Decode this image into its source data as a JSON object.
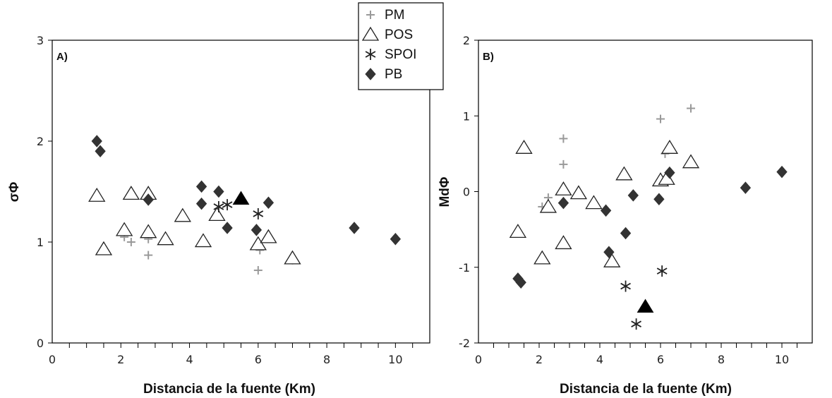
{
  "chart_data": [
    {
      "type": "scatter",
      "panel_label": "A)",
      "xlabel": "Distancia de la fuente (Km)",
      "ylabel": "σΦ",
      "xlim": [
        0,
        11
      ],
      "ylim": [
        0,
        3
      ],
      "xticks": [
        "0",
        "2",
        "4",
        "6",
        "8",
        "10"
      ],
      "yticks": [
        "0",
        "1",
        "2",
        "3"
      ],
      "x_minor_step": 0.5,
      "grid": false,
      "series": [
        {
          "name": "PM",
          "marker": "plus",
          "color": "#999999",
          "points": [
            [
              2.1,
              1.05
            ],
            [
              2.3,
              1.0
            ],
            [
              2.8,
              1.03
            ],
            [
              2.8,
              0.87
            ],
            [
              6.0,
              0.72
            ],
            [
              6.05,
              0.92
            ],
            [
              7.0,
              0.82
            ]
          ]
        },
        {
          "name": "POS",
          "marker": "triangle-open",
          "color": "#222222",
          "points": [
            [
              1.3,
              1.46
            ],
            [
              1.5,
              0.93
            ],
            [
              2.1,
              1.12
            ],
            [
              2.3,
              1.48
            ],
            [
              2.8,
              1.48
            ],
            [
              2.8,
              1.1
            ],
            [
              3.3,
              1.03
            ],
            [
              3.8,
              1.26
            ],
            [
              4.4,
              1.01
            ],
            [
              4.8,
              1.27
            ],
            [
              6.0,
              0.98
            ],
            [
              6.3,
              1.05
            ],
            [
              7.0,
              0.84
            ]
          ]
        },
        {
          "name": "SPOI",
          "marker": "asterisk",
          "color": "#222222",
          "points": [
            [
              4.85,
              1.35
            ],
            [
              5.1,
              1.37
            ],
            [
              6.0,
              1.28
            ]
          ]
        },
        {
          "name": "PB",
          "marker": "diamond",
          "color": "#333333",
          "points": [
            [
              1.3,
              2.0
            ],
            [
              1.4,
              1.9
            ],
            [
              2.8,
              1.42
            ],
            [
              4.35,
              1.55
            ],
            [
              4.35,
              1.38
            ],
            [
              4.85,
              1.5
            ],
            [
              5.1,
              1.14
            ],
            [
              5.95,
              1.12
            ],
            [
              6.3,
              1.39
            ],
            [
              8.8,
              1.14
            ],
            [
              10.0,
              1.03
            ]
          ]
        },
        {
          "marker": "triangle-filled",
          "color": "#000000",
          "points": [
            [
              5.5,
              1.43
            ]
          ]
        }
      ]
    },
    {
      "type": "scatter",
      "panel_label": "B)",
      "xlabel": "Distancia de la fuente (Km)",
      "ylabel": "MdΦ",
      "xlim": [
        0,
        11
      ],
      "ylim": [
        -2,
        2
      ],
      "xticks": [
        "0",
        "2",
        "4",
        "6",
        "8",
        "10"
      ],
      "yticks": [
        "-2",
        "-1",
        "0",
        "1",
        "2"
      ],
      "x_minor_step": 0.5,
      "grid": false,
      "series": [
        {
          "name": "PM",
          "marker": "plus",
          "color": "#999999",
          "points": [
            [
              2.1,
              -0.2
            ],
            [
              2.3,
              -0.08
            ],
            [
              2.8,
              0.7
            ],
            [
              2.8,
              0.36
            ],
            [
              6.0,
              0.96
            ],
            [
              6.15,
              0.5
            ],
            [
              7.0,
              1.1
            ]
          ]
        },
        {
          "name": "POS",
          "marker": "triangle-open",
          "color": "#222222",
          "points": [
            [
              1.3,
              -0.53
            ],
            [
              1.5,
              0.58
            ],
            [
              2.1,
              -0.88
            ],
            [
              2.3,
              -0.2
            ],
            [
              2.8,
              0.03
            ],
            [
              2.8,
              -0.68
            ],
            [
              3.3,
              -0.02
            ],
            [
              3.8,
              -0.15
            ],
            [
              4.4,
              -0.92
            ],
            [
              4.8,
              0.23
            ],
            [
              6.0,
              0.15
            ],
            [
              6.2,
              0.17
            ],
            [
              6.3,
              0.58
            ],
            [
              7.0,
              0.39
            ]
          ]
        },
        {
          "name": "SPOI",
          "marker": "asterisk",
          "color": "#222222",
          "points": [
            [
              4.85,
              -1.25
            ],
            [
              5.2,
              -1.75
            ],
            [
              6.05,
              -1.05
            ]
          ]
        },
        {
          "name": "PB",
          "marker": "diamond",
          "color": "#333333",
          "points": [
            [
              1.3,
              -1.15
            ],
            [
              1.4,
              -1.2
            ],
            [
              2.8,
              -0.15
            ],
            [
              4.2,
              -0.25
            ],
            [
              4.3,
              -0.8
            ],
            [
              4.85,
              -0.55
            ],
            [
              5.1,
              -0.05
            ],
            [
              5.95,
              -0.1
            ],
            [
              6.3,
              0.25
            ],
            [
              8.8,
              0.05
            ],
            [
              10.0,
              0.26
            ]
          ]
        },
        {
          "marker": "triangle-filled",
          "color": "#000000",
          "points": [
            [
              5.5,
              -1.52
            ]
          ]
        }
      ]
    }
  ],
  "legend": {
    "placement": "top-center",
    "items": [
      {
        "label": "PM",
        "marker": "plus",
        "color": "#999999"
      },
      {
        "label": "POS",
        "marker": "triangle-open",
        "color": "#222222"
      },
      {
        "label": "SPOI",
        "marker": "asterisk",
        "color": "#222222"
      },
      {
        "label": "PB",
        "marker": "diamond",
        "color": "#333333"
      }
    ]
  }
}
